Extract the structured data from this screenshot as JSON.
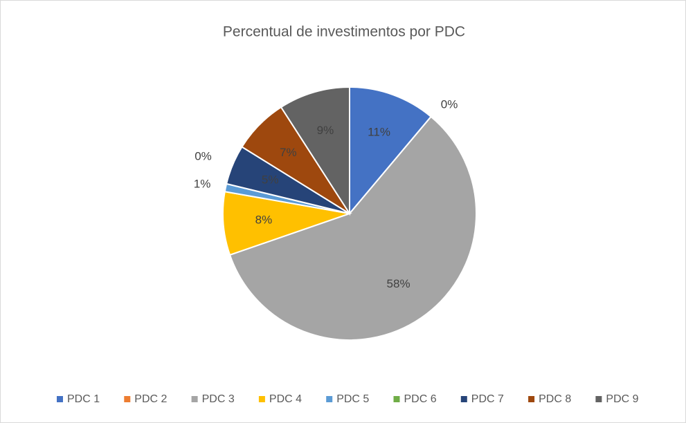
{
  "chart_data": {
    "type": "pie",
    "title": "Percentual de investimentos por PDC",
    "categories": [
      "PDC 1",
      "PDC 2",
      "PDC 3",
      "PDC 4",
      "PDC 5",
      "PDC 6",
      "PDC 7",
      "PDC 8",
      "PDC 9"
    ],
    "values": [
      11,
      0,
      58,
      8,
      1,
      0,
      5,
      7,
      9
    ],
    "value_labels": [
      "11%",
      "0%",
      "58%",
      "8%",
      "1%",
      "0%",
      "5%",
      "7%",
      "9%"
    ],
    "colors": [
      "#4472c4",
      "#ed7d31",
      "#a5a5a5",
      "#ffc000",
      "#5b9bd5",
      "#70ad47",
      "#264478",
      "#9e480e",
      "#636363"
    ],
    "legend": "bottom"
  }
}
